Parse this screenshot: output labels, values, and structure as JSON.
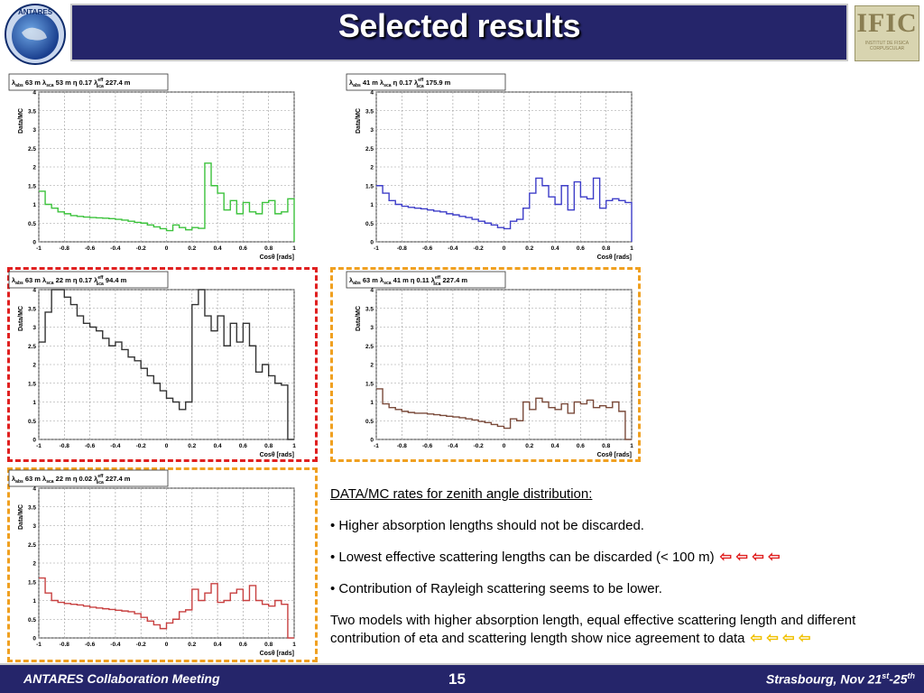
{
  "slide": {
    "title": "Selected results",
    "ific_logo_text": "IFIC",
    "ific_logo_subtext": "INSTITUT DE FISICA CORPUSCULAR",
    "antares_logo_text": "ANTARES"
  },
  "footer": {
    "left": "ANTARES Collaboration Meeting",
    "page": "15",
    "right_main": "Strasbourg, Nov 21",
    "right_sup1": "st",
    "right_dash": "-25",
    "right_sup2": "th"
  },
  "notes": {
    "heading": "DATA/MC rates for zenith angle distribution:",
    "b1": "• Higher absorption lengths should not be discarded.",
    "b2": "• Lowest effective scattering lengths can be discarded (< 100 m)",
    "b3": "• Contribution of Rayleigh scattering seems to be lower.",
    "b4": " Two models with higher absorption length, equal effective scattering length and different contribution of eta and scattering length show nice agreement to data",
    "arrow_color_b2": "#e02020",
    "arrow_color_b4": "#f0c000"
  },
  "chart_data": [
    {
      "type": "line",
      "legend": {
        "l_abs": "63 m",
        "l_sca": "53 m",
        "eta": "0.17",
        "l_sca_eff": "227.4 m"
      },
      "ylabel": "Data/MC",
      "xlabel": "Cosθ [rads]",
      "xlim": [
        -1,
        1
      ],
      "ylim": [
        0,
        4
      ],
      "xticks": [
        "-1",
        "-0.8",
        "-0.6",
        "-0.4",
        "-0.2",
        "0",
        "0.2",
        "0.4",
        "0.6",
        "0.8",
        "1"
      ],
      "yticks": [
        "0",
        "0.5",
        "1",
        "1.5",
        "2",
        "2.5",
        "3",
        "3.5",
        "4"
      ],
      "grid": true,
      "color": "#3cc23c",
      "bins": 40,
      "values": [
        1.35,
        1.0,
        0.9,
        0.8,
        0.75,
        0.7,
        0.68,
        0.66,
        0.65,
        0.64,
        0.63,
        0.62,
        0.6,
        0.58,
        0.55,
        0.52,
        0.5,
        0.45,
        0.4,
        0.35,
        0.3,
        0.45,
        0.38,
        0.32,
        0.38,
        0.36,
        2.1,
        1.5,
        1.3,
        0.85,
        1.1,
        0.75,
        1.05,
        0.8,
        0.75,
        1.05,
        1.1,
        0.75,
        0.8,
        1.15
      ]
    },
    {
      "type": "line",
      "legend": {
        "l_abs": "41 m",
        "l_sca": "",
        "eta": "0.17",
        "l_sca_eff": "175.9 m"
      },
      "ylabel": "Data/MC",
      "xlabel": "Cosθ [rads]",
      "xlim": [
        -1,
        1
      ],
      "ylim": [
        0,
        4
      ],
      "xticks": [
        "-1",
        "-0.8",
        "-0.6",
        "-0.4",
        "-0.2",
        "0",
        "0.2",
        "0.4",
        "0.6",
        "0.8",
        "1"
      ],
      "yticks": [
        "0",
        "0.5",
        "1",
        "1.5",
        "2",
        "2.5",
        "3",
        "3.5",
        "4"
      ],
      "grid": true,
      "color": "#3d3dc8",
      "bins": 40,
      "values": [
        1.5,
        1.3,
        1.1,
        1.0,
        0.95,
        0.92,
        0.9,
        0.88,
        0.85,
        0.82,
        0.8,
        0.75,
        0.72,
        0.68,
        0.65,
        0.6,
        0.55,
        0.5,
        0.45,
        0.38,
        0.35,
        0.55,
        0.6,
        0.9,
        1.3,
        1.7,
        1.5,
        1.2,
        1.0,
        1.5,
        0.85,
        1.6,
        1.2,
        1.15,
        1.7,
        0.9,
        1.1,
        1.15,
        1.1,
        1.05
      ]
    },
    {
      "type": "line",
      "legend": {
        "l_abs": "63 m",
        "l_sca": "22 m",
        "eta": "0.17",
        "l_sca_eff": "94.4 m"
      },
      "ylabel": "Data/MC",
      "xlabel": "Cosθ [rads]",
      "xlim": [
        -1,
        1
      ],
      "ylim": [
        0,
        4
      ],
      "xticks": [
        "-1",
        "-0.8",
        "-0.6",
        "-0.4",
        "-0.2",
        "0",
        "0.2",
        "0.4",
        "0.6",
        "0.8",
        "1"
      ],
      "yticks": [
        "0",
        "0.5",
        "1",
        "1.5",
        "2",
        "2.5",
        "3",
        "3.5",
        "4"
      ],
      "grid": true,
      "color": "#333333",
      "bins": 40,
      "values": [
        2.6,
        3.4,
        4.2,
        4.0,
        3.8,
        3.6,
        3.3,
        3.1,
        3.0,
        2.9,
        2.7,
        2.5,
        2.6,
        2.4,
        2.2,
        2.1,
        1.9,
        1.7,
        1.5,
        1.3,
        1.1,
        1.0,
        0.8,
        1.0,
        3.6,
        4.1,
        3.3,
        2.9,
        3.3,
        2.5,
        3.1,
        2.6,
        3.1,
        2.5,
        1.8,
        2.0,
        1.7,
        1.5,
        1.45,
        0.0
      ]
    },
    {
      "type": "line",
      "legend": {
        "l_abs": "63 m",
        "l_sca": "41 m",
        "eta": "0.11",
        "l_sca_eff": "227.4 m"
      },
      "ylabel": "Data/MC",
      "xlabel": "Cosθ [rads]",
      "xlim": [
        -1,
        1
      ],
      "ylim": [
        0,
        4
      ],
      "xticks": [
        "-1",
        "-0.8",
        "-0.6",
        "-0.4",
        "-0.2",
        "0",
        "0.2",
        "0.4",
        "0.6",
        "0.8",
        "1"
      ],
      "yticks": [
        "0",
        "0.5",
        "1",
        "1.5",
        "2",
        "2.5",
        "3",
        "3.5",
        "4"
      ],
      "grid": true,
      "color": "#7a4a3a",
      "bins": 40,
      "values": [
        1.35,
        0.95,
        0.85,
        0.8,
        0.75,
        0.72,
        0.7,
        0.7,
        0.68,
        0.66,
        0.64,
        0.62,
        0.6,
        0.58,
        0.55,
        0.52,
        0.48,
        0.45,
        0.4,
        0.35,
        0.3,
        0.55,
        0.5,
        1.0,
        0.8,
        1.1,
        1.0,
        0.85,
        0.8,
        0.95,
        0.7,
        1.0,
        0.95,
        1.05,
        0.85,
        0.9,
        0.85,
        1.0,
        0.75,
        0.0
      ]
    },
    {
      "type": "line",
      "legend": {
        "l_abs": "63 m",
        "l_sca": "22 m",
        "eta": "0.02",
        "l_sca_eff": "227.4 m"
      },
      "ylabel": "Data/MC",
      "xlabel": "Cosθ [rads]",
      "xlim": [
        -1,
        1
      ],
      "ylim": [
        0,
        4
      ],
      "xticks": [
        "-1",
        "-0.8",
        "-0.6",
        "-0.4",
        "-0.2",
        "0",
        "0.2",
        "0.4",
        "0.6",
        "0.8",
        "1"
      ],
      "yticks": [
        "0",
        "0.5",
        "1",
        "1.5",
        "2",
        "2.5",
        "3",
        "3.5",
        "4"
      ],
      "grid": true,
      "color": "#c84040",
      "bins": 40,
      "values": [
        1.6,
        1.2,
        1.0,
        0.95,
        0.92,
        0.9,
        0.88,
        0.85,
        0.82,
        0.8,
        0.78,
        0.76,
        0.74,
        0.72,
        0.7,
        0.65,
        0.55,
        0.45,
        0.35,
        0.25,
        0.4,
        0.5,
        0.7,
        0.75,
        1.3,
        1.0,
        1.2,
        1.45,
        0.95,
        1.0,
        1.2,
        1.3,
        1.0,
        1.4,
        1.0,
        0.9,
        0.85,
        1.0,
        0.9,
        0.0
      ]
    }
  ]
}
